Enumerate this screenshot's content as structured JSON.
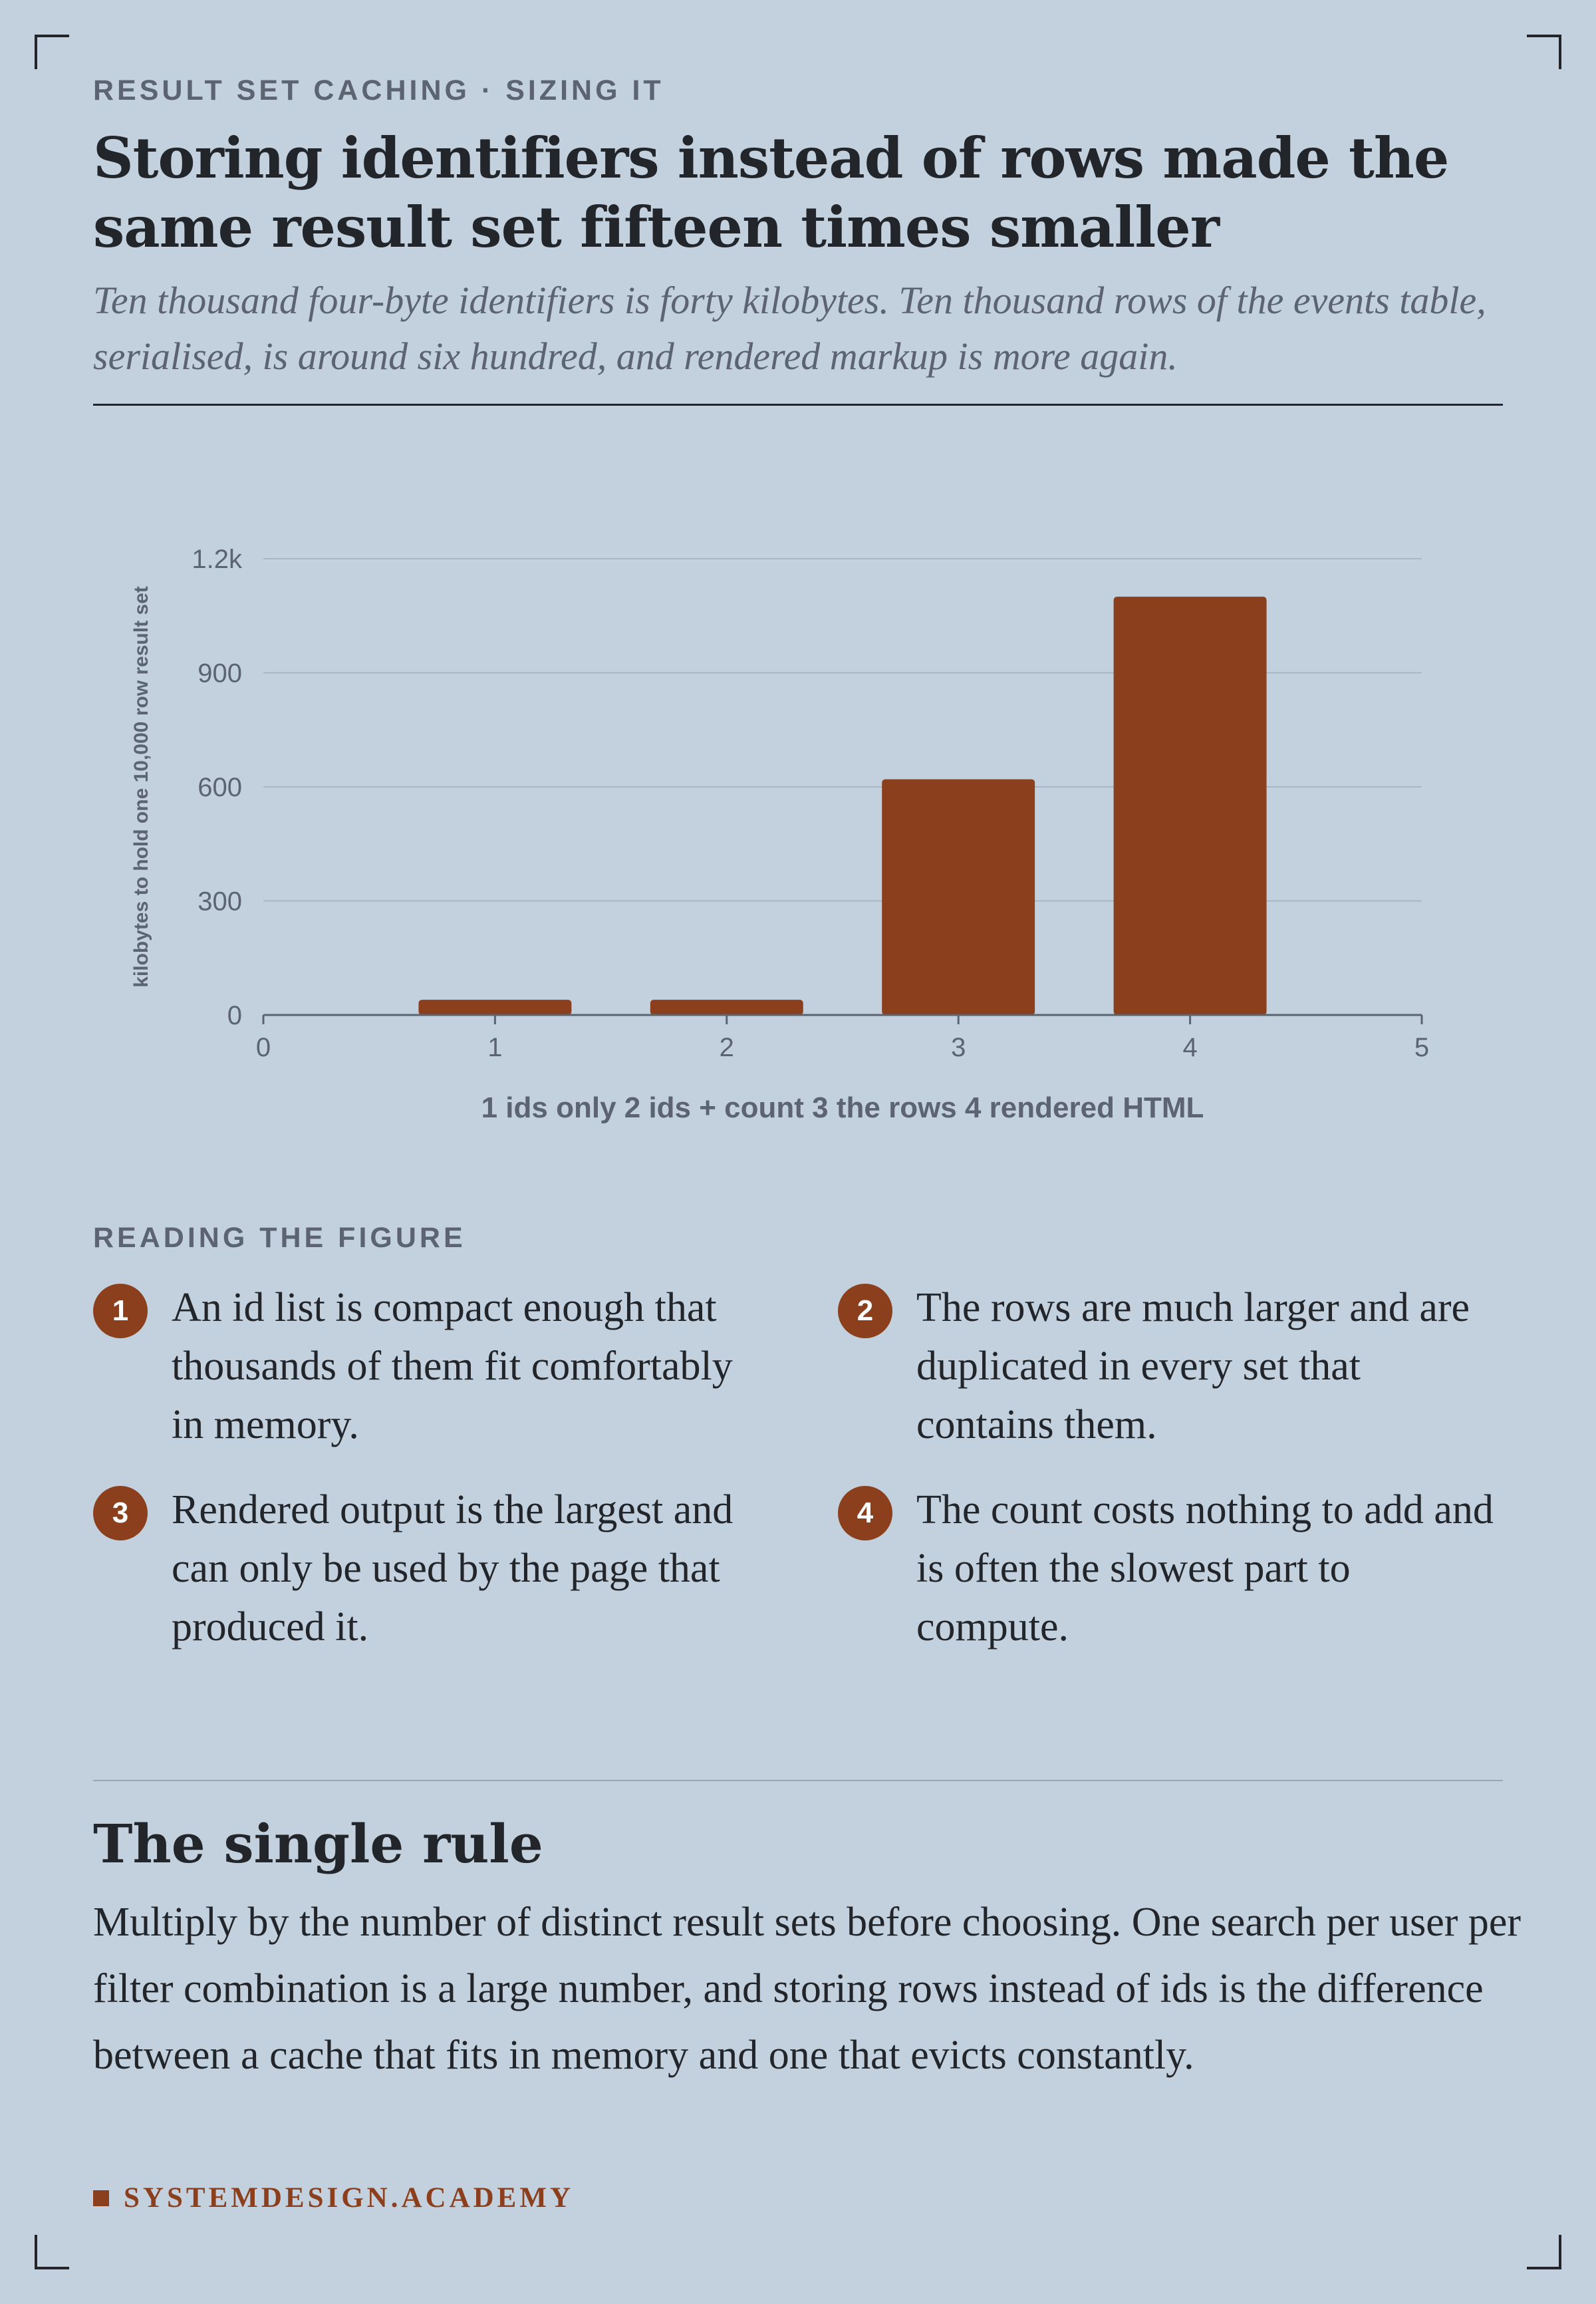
{
  "eyebrow": "RESULT SET CACHING · SIZING IT",
  "title": "Storing identifiers instead of rows made the same result set fifteen times smaller",
  "subtitle": "Ten thousand four-byte identifiers is forty kilobytes. Ten thousand rows of the events table, serialised, is around six hundred, and rendered markup is more again.",
  "colors": {
    "bar": "#8b3f1c",
    "background": "#c3d1de",
    "text": "#22262b",
    "muted": "#5b6470"
  },
  "chart_data": {
    "type": "bar",
    "x": [
      1,
      2,
      3,
      4
    ],
    "values": [
      40,
      40,
      620,
      1100
    ],
    "xlim": [
      0,
      5
    ],
    "ylim": [
      0,
      1200
    ],
    "x_ticks": [
      "0",
      "1",
      "2",
      "3",
      "4",
      "5"
    ],
    "y_ticks": [
      "0",
      "300",
      "600",
      "900",
      "1.2k"
    ],
    "y_tick_values": [
      0,
      300,
      600,
      900,
      1200
    ],
    "xlabel": "1 ids only 2 ids + count 3 the rows 4 rendered HTML",
    "ylabel": "kilobytes to hold one 10,000 row result set",
    "grid": true
  },
  "reading": {
    "label": "READING THE FIGURE",
    "notes": [
      {
        "num": "1",
        "text": "An id list is compact enough that thousands of them fit comfortably in memory."
      },
      {
        "num": "2",
        "text": "The rows are much larger and are duplicated in every set that contains them."
      },
      {
        "num": "3",
        "text": "Rendered output is the largest and can only be used by the page that produced it."
      },
      {
        "num": "4",
        "text": "The count costs nothing to add and is often the slowest part to compute."
      }
    ]
  },
  "rule": {
    "heading": "The single rule",
    "body": "Multiply by the number of distinct result sets before choosing. One search per user per filter combination is a large number, and storing rows instead of ids is the difference between a cache that fits in memory and one that evicts constantly."
  },
  "brand": "SYSTEMDESIGN.ACADEMY"
}
